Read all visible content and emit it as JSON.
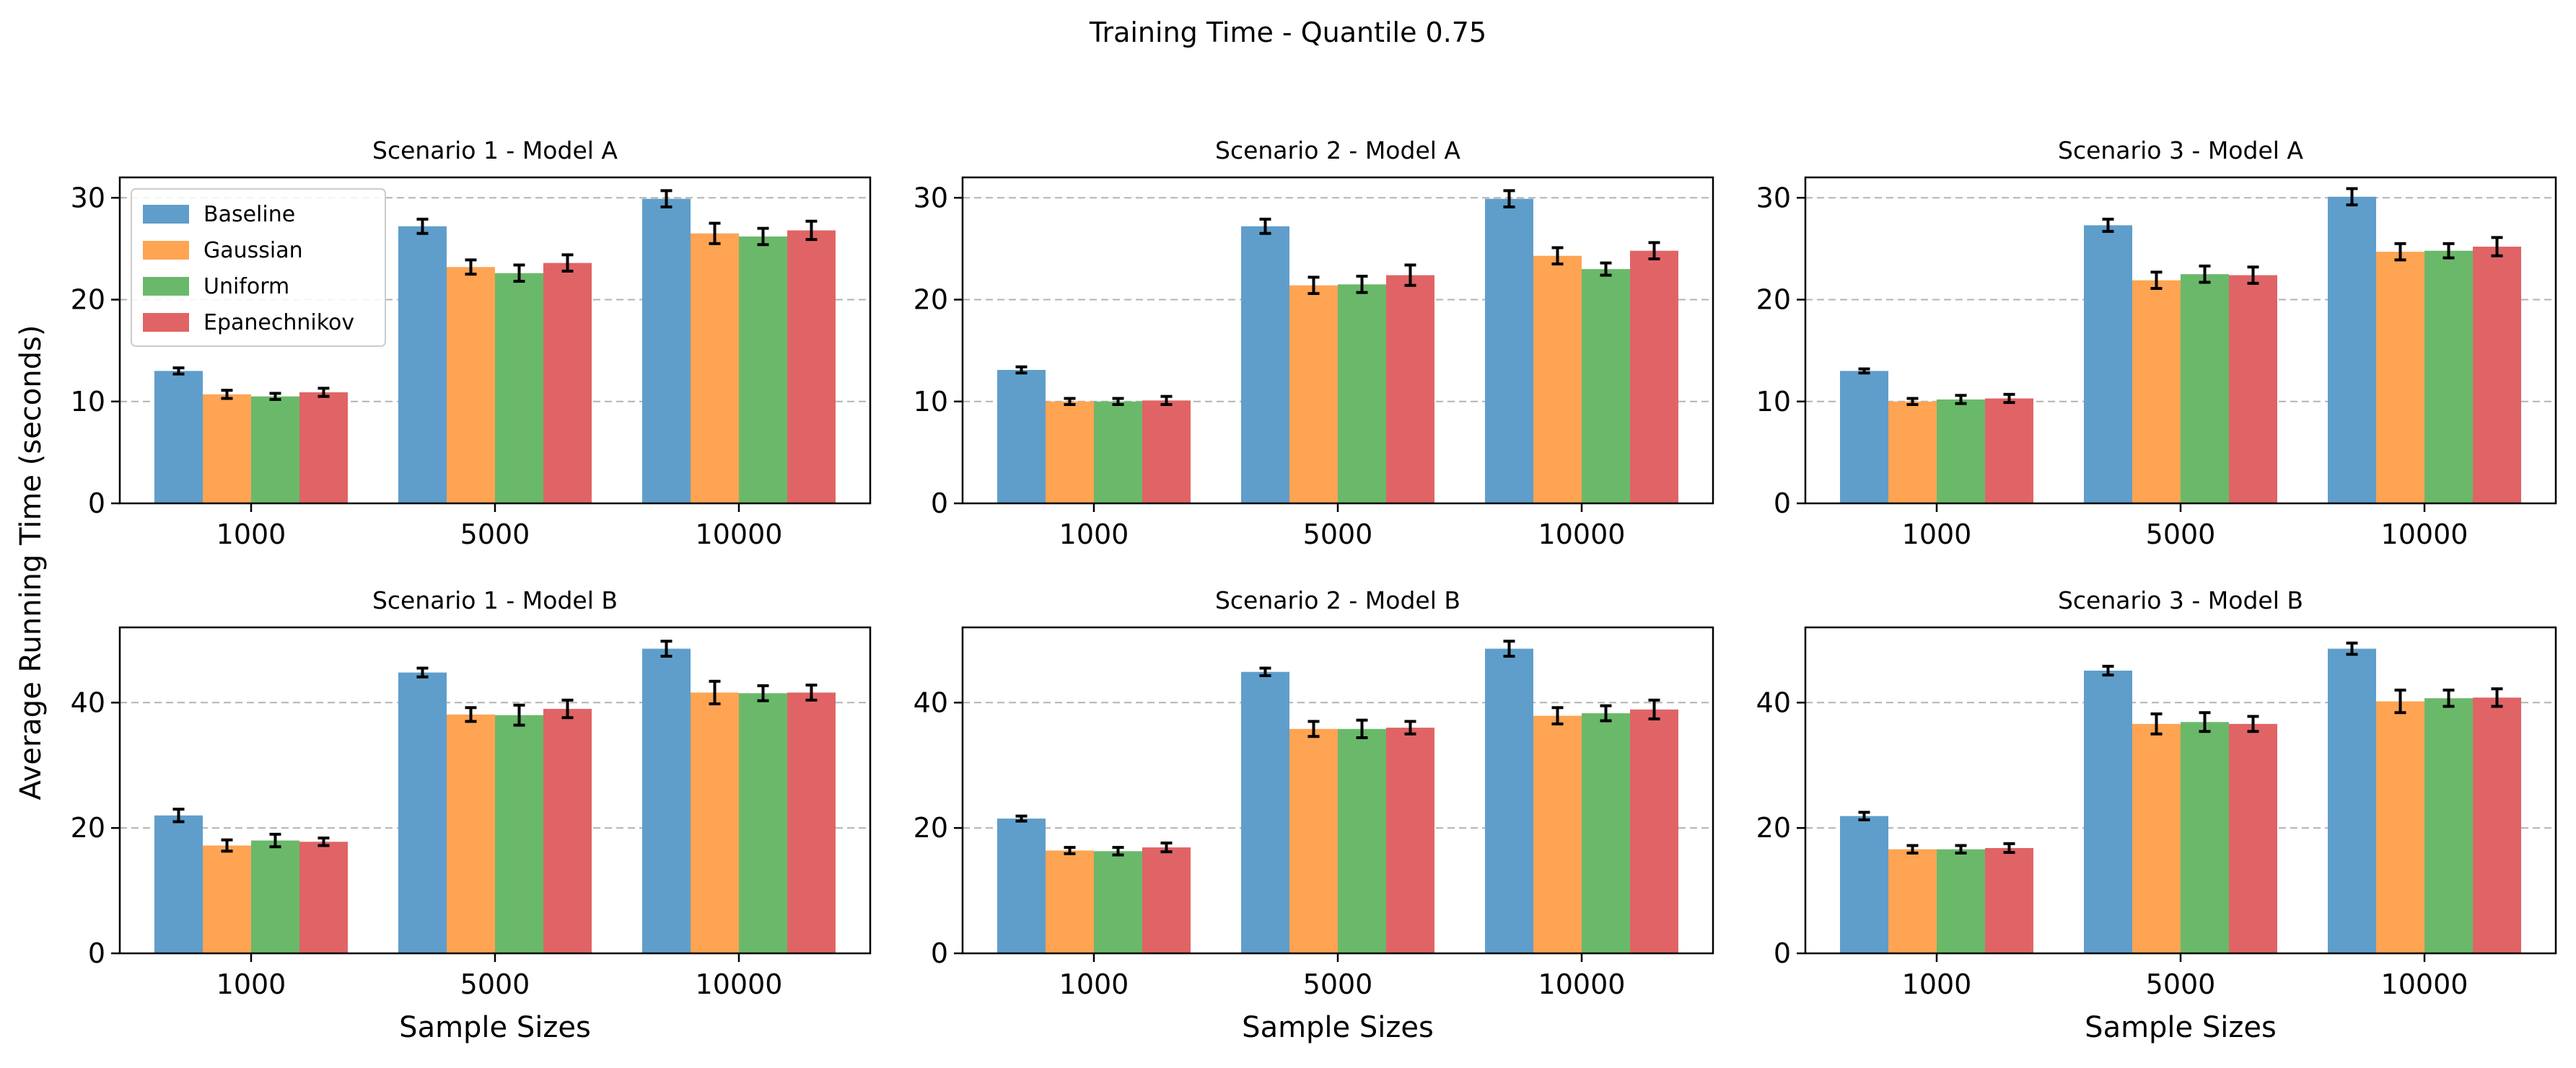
{
  "figure_title": "Training Time - Quantile 0.75",
  "ylabel": "Average Running Time (seconds)",
  "xlabel": "Sample Sizes",
  "colors": {
    "Baseline": "#5f9ecb",
    "Gaussian": "#fea453",
    "Uniform": "#6ab96a",
    "Epanechnikov": "#e06466"
  },
  "chart_data": [
    {
      "type": "bar",
      "title": "Scenario 1 - Model A",
      "categories": [
        "1000",
        "5000",
        "10000"
      ],
      "yticks": [
        0,
        10,
        20,
        30
      ],
      "ylim": [
        0,
        32
      ],
      "legend": "upper-left",
      "grid": "y-dashed",
      "series": [
        {
          "name": "Baseline",
          "values": [
            13.0,
            27.2,
            29.9
          ],
          "errors": [
            0.3,
            0.7,
            0.8
          ]
        },
        {
          "name": "Gaussian",
          "values": [
            10.7,
            23.2,
            26.5
          ],
          "errors": [
            0.4,
            0.7,
            1.0
          ]
        },
        {
          "name": "Uniform",
          "values": [
            10.5,
            22.6,
            26.2
          ],
          "errors": [
            0.3,
            0.8,
            0.8
          ]
        },
        {
          "name": "Epanechnikov",
          "values": [
            10.9,
            23.6,
            26.8
          ],
          "errors": [
            0.4,
            0.8,
            0.9
          ]
        }
      ]
    },
    {
      "type": "bar",
      "title": "Scenario 2 - Model A",
      "categories": [
        "1000",
        "5000",
        "10000"
      ],
      "yticks": [
        0,
        10,
        20,
        30
      ],
      "ylim": [
        0,
        32
      ],
      "grid": "y-dashed",
      "series": [
        {
          "name": "Baseline",
          "values": [
            13.1,
            27.2,
            29.9
          ],
          "errors": [
            0.3,
            0.7,
            0.8
          ]
        },
        {
          "name": "Gaussian",
          "values": [
            10.0,
            21.4,
            24.3
          ],
          "errors": [
            0.3,
            0.8,
            0.8
          ]
        },
        {
          "name": "Uniform",
          "values": [
            10.0,
            21.5,
            23.0
          ],
          "errors": [
            0.3,
            0.8,
            0.6
          ]
        },
        {
          "name": "Epanechnikov",
          "values": [
            10.1,
            22.4,
            24.8
          ],
          "errors": [
            0.4,
            1.0,
            0.8
          ]
        }
      ]
    },
    {
      "type": "bar",
      "title": "Scenario 3 - Model A",
      "categories": [
        "1000",
        "5000",
        "10000"
      ],
      "yticks": [
        0,
        10,
        20,
        30
      ],
      "ylim": [
        0,
        32
      ],
      "grid": "y-dashed",
      "series": [
        {
          "name": "Baseline",
          "values": [
            13.0,
            27.3,
            30.1
          ],
          "errors": [
            0.2,
            0.6,
            0.8
          ]
        },
        {
          "name": "Gaussian",
          "values": [
            10.0,
            21.9,
            24.7
          ],
          "errors": [
            0.3,
            0.8,
            0.8
          ]
        },
        {
          "name": "Uniform",
          "values": [
            10.2,
            22.5,
            24.8
          ],
          "errors": [
            0.4,
            0.8,
            0.7
          ]
        },
        {
          "name": "Epanechnikov",
          "values": [
            10.3,
            22.4,
            25.2
          ],
          "errors": [
            0.4,
            0.8,
            0.9
          ]
        }
      ]
    },
    {
      "type": "bar",
      "title": "Scenario 1 - Model B",
      "categories": [
        "1000",
        "5000",
        "10000"
      ],
      "yticks": [
        0,
        20,
        40
      ],
      "ylim": [
        0,
        52
      ],
      "grid": "y-dashed",
      "series": [
        {
          "name": "Baseline",
          "values": [
            22.0,
            44.8,
            48.6
          ],
          "errors": [
            1.0,
            0.7,
            1.2
          ]
        },
        {
          "name": "Gaussian",
          "values": [
            17.2,
            38.1,
            41.6
          ],
          "errors": [
            0.9,
            1.1,
            1.8
          ]
        },
        {
          "name": "Uniform",
          "values": [
            18.0,
            38.0,
            41.5
          ],
          "errors": [
            1.0,
            1.6,
            1.2
          ]
        },
        {
          "name": "Epanechnikov",
          "values": [
            17.8,
            39.0,
            41.6
          ],
          "errors": [
            0.6,
            1.4,
            1.2
          ]
        }
      ]
    },
    {
      "type": "bar",
      "title": "Scenario 2 - Model B",
      "categories": [
        "1000",
        "5000",
        "10000"
      ],
      "yticks": [
        0,
        20,
        40
      ],
      "ylim": [
        0,
        52
      ],
      "grid": "y-dashed",
      "series": [
        {
          "name": "Baseline",
          "values": [
            21.5,
            44.9,
            48.6
          ],
          "errors": [
            0.4,
            0.6,
            1.2
          ]
        },
        {
          "name": "Gaussian",
          "values": [
            16.4,
            35.8,
            37.9
          ],
          "errors": [
            0.5,
            1.2,
            1.3
          ]
        },
        {
          "name": "Uniform",
          "values": [
            16.3,
            35.8,
            38.3
          ],
          "errors": [
            0.6,
            1.4,
            1.2
          ]
        },
        {
          "name": "Epanechnikov",
          "values": [
            16.9,
            36.0,
            38.9
          ],
          "errors": [
            0.7,
            1.0,
            1.5
          ]
        }
      ]
    },
    {
      "type": "bar",
      "title": "Scenario 3 - Model B",
      "categories": [
        "1000",
        "5000",
        "10000"
      ],
      "yticks": [
        0,
        20,
        40
      ],
      "ylim": [
        0,
        52
      ],
      "grid": "y-dashed",
      "series": [
        {
          "name": "Baseline",
          "values": [
            21.9,
            45.1,
            48.6
          ],
          "errors": [
            0.6,
            0.7,
            0.9
          ]
        },
        {
          "name": "Gaussian",
          "values": [
            16.6,
            36.6,
            40.2
          ],
          "errors": [
            0.6,
            1.6,
            1.8
          ]
        },
        {
          "name": "Uniform",
          "values": [
            16.6,
            36.9,
            40.7
          ],
          "errors": [
            0.6,
            1.5,
            1.3
          ]
        },
        {
          "name": "Epanechnikov",
          "values": [
            16.8,
            36.6,
            40.8
          ],
          "errors": [
            0.7,
            1.2,
            1.4
          ]
        }
      ]
    }
  ]
}
